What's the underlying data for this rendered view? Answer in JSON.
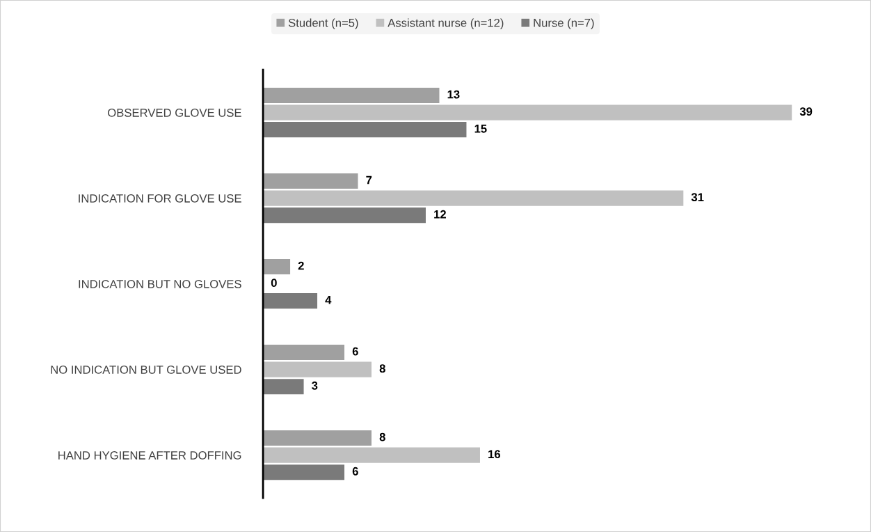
{
  "chart_data": {
    "type": "bar",
    "orientation": "horizontal",
    "categories": [
      "OBSERVED GLOVE USE",
      "INDICATION FOR GLOVE USE",
      "INDICATION BUT NO GLOVES",
      "NO INDICATION BUT GLOVE USED",
      "HAND HYGIENE AFTER DOFFING"
    ],
    "series": [
      {
        "name": "Student (n=5)",
        "color": "#a0a0a0",
        "values": [
          13,
          7,
          2,
          6,
          8
        ]
      },
      {
        "name": "Assistant nurse (n=12)",
        "color": "#c0c0c0",
        "values": [
          39,
          31,
          0,
          8,
          16
        ]
      },
      {
        "name": "Nurse (n=7)",
        "color": "#7a7a7a",
        "values": [
          15,
          12,
          4,
          3,
          6
        ]
      }
    ],
    "tick_labels": "y",
    "data_labels": true,
    "legend": "top",
    "grid": false
  }
}
